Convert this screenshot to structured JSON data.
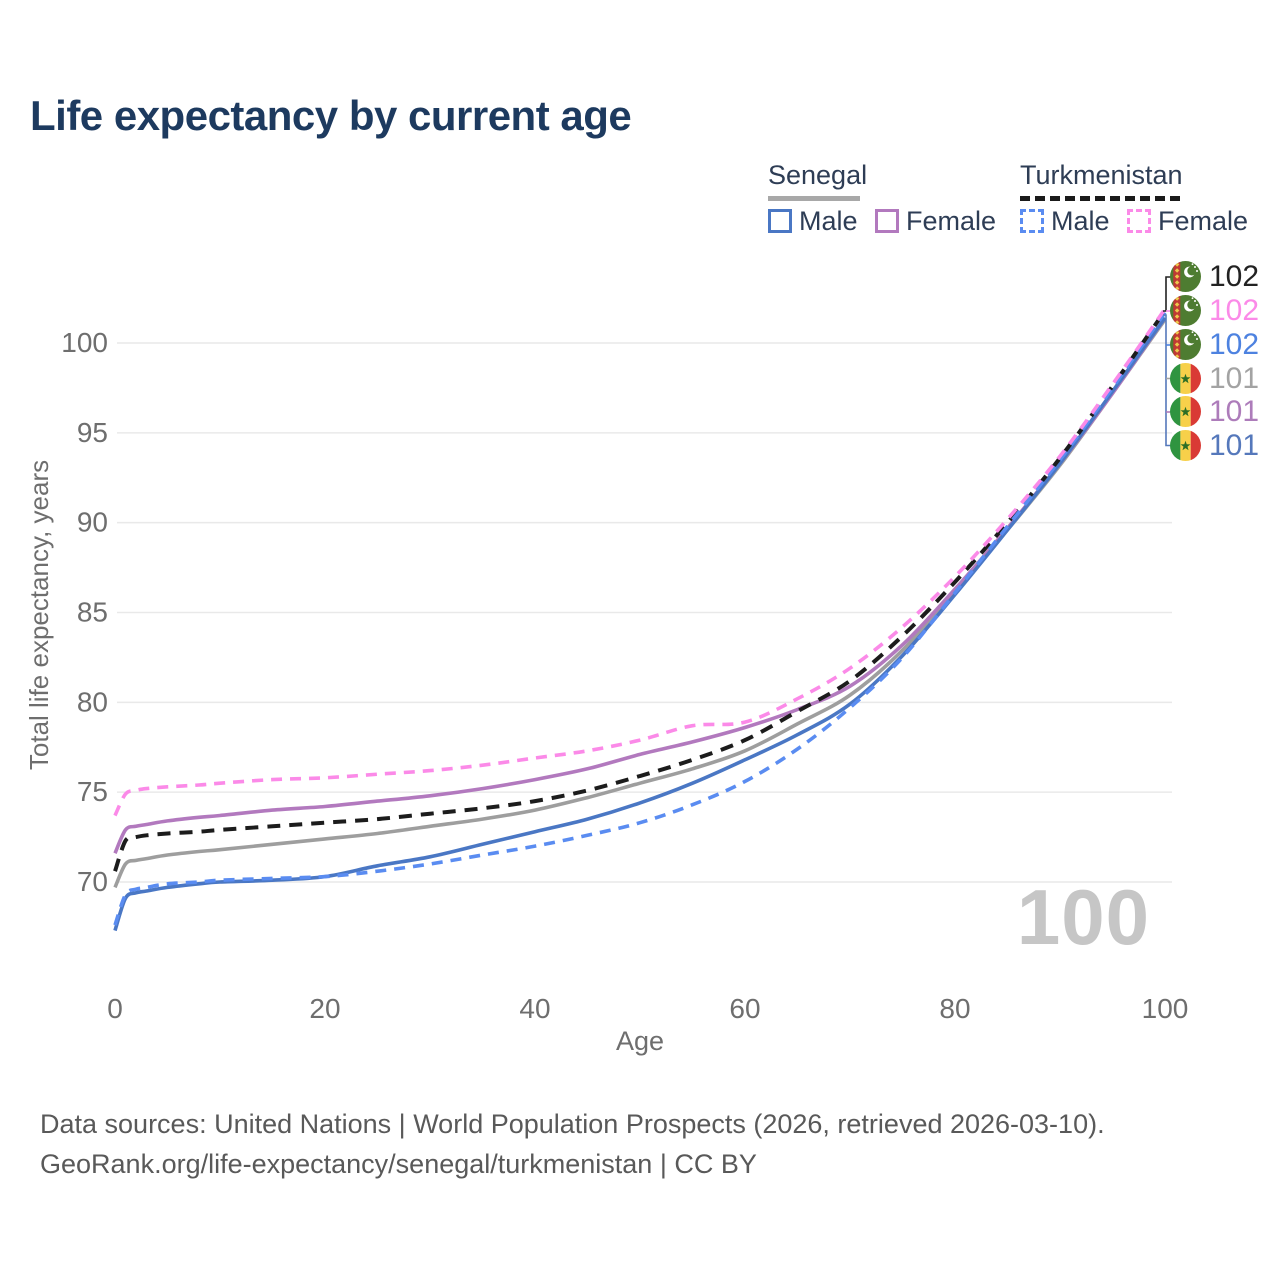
{
  "page": {
    "title": "Life expectancy by current age"
  },
  "legend": {
    "groups": [
      {
        "label": "Senegal",
        "line_color": "#a8a8a8",
        "line_style": "solid",
        "items": [
          {
            "label": "Male",
            "color": "#4a77c4",
            "style": "solid"
          },
          {
            "label": "Female",
            "color": "#b279be",
            "style": "solid"
          }
        ]
      },
      {
        "label": "Turkmenistan",
        "line_color": "#1a1a1a",
        "line_style": "dashed",
        "items": [
          {
            "label": "Male",
            "color": "#5a8cf1",
            "style": "dashed"
          },
          {
            "label": "Female",
            "color": "#fb8ae8",
            "style": "dashed"
          }
        ]
      }
    ]
  },
  "chart_data": {
    "type": "line",
    "title": "Life expectancy by current age",
    "xlabel": "Age",
    "ylabel": "Total life expectancy, years",
    "xlim": [
      0,
      100
    ],
    "ylim": [
      66.5,
      103.5
    ],
    "xticks": [
      0,
      20,
      40,
      60,
      80,
      100
    ],
    "yticks": [
      70,
      75,
      80,
      85,
      90,
      95,
      100
    ],
    "grid": "horizontal",
    "legend_position": "top-right",
    "x": [
      0,
      1,
      2,
      3,
      5,
      8,
      10,
      15,
      20,
      25,
      30,
      35,
      40,
      45,
      50,
      55,
      60,
      65,
      70,
      75,
      80,
      85,
      90,
      95,
      100
    ],
    "series": [
      {
        "name": "Senegal Total",
        "country": "senegal",
        "sex": "total",
        "color": "#9e9e9e",
        "dash": "solid",
        "values": [
          69.7,
          71.0,
          71.2,
          71.3,
          71.5,
          71.7,
          71.8,
          72.1,
          72.4,
          72.7,
          73.1,
          73.5,
          74.0,
          74.7,
          75.5,
          76.3,
          77.3,
          78.8,
          80.4,
          82.9,
          86.2,
          89.6,
          93.2,
          97.2,
          101.3
        ]
      },
      {
        "name": "Senegal Female",
        "country": "senegal",
        "sex": "female",
        "color": "#b279be",
        "dash": "solid",
        "values": [
          71.6,
          72.9,
          73.1,
          73.2,
          73.4,
          73.6,
          73.7,
          74.0,
          74.2,
          74.5,
          74.8,
          75.2,
          75.7,
          76.3,
          77.1,
          77.8,
          78.6,
          79.6,
          80.9,
          83.2,
          86.3,
          89.7,
          93.3,
          97.2,
          101.4
        ]
      },
      {
        "name": "Senegal Male",
        "country": "senegal",
        "sex": "male",
        "color": "#4a77c4",
        "dash": "solid",
        "values": [
          67.3,
          69.1,
          69.4,
          69.5,
          69.7,
          69.9,
          70.0,
          70.1,
          70.3,
          70.9,
          71.4,
          72.1,
          72.8,
          73.5,
          74.4,
          75.5,
          76.8,
          78.2,
          79.9,
          82.6,
          86.0,
          89.6,
          93.3,
          97.3,
          101.4
        ]
      },
      {
        "name": "Turkmenistan Total",
        "country": "turkmenistan",
        "sex": "total",
        "color": "#1c1c1c",
        "dash": "dashed",
        "values": [
          70.6,
          72.3,
          72.5,
          72.6,
          72.7,
          72.8,
          72.9,
          73.1,
          73.3,
          73.5,
          73.8,
          74.1,
          74.5,
          75.1,
          75.9,
          76.8,
          77.9,
          79.5,
          81.2,
          83.7,
          86.7,
          90.0,
          93.6,
          97.6,
          101.8
        ]
      },
      {
        "name": "Turkmenistan Male",
        "country": "turkmenistan",
        "sex": "male",
        "color": "#5a8cf1",
        "dash": "dashed",
        "values": [
          67.6,
          69.3,
          69.6,
          69.7,
          69.9,
          70.0,
          70.1,
          70.2,
          70.3,
          70.6,
          71.0,
          71.5,
          72.0,
          72.6,
          73.3,
          74.3,
          75.6,
          77.4,
          79.7,
          82.5,
          86.1,
          89.8,
          93.5,
          97.5,
          101.7
        ]
      },
      {
        "name": "Turkmenistan Female",
        "country": "turkmenistan",
        "sex": "female",
        "color": "#fb8ae8",
        "dash": "dashed",
        "values": [
          73.7,
          74.9,
          75.1,
          75.2,
          75.3,
          75.4,
          75.5,
          75.7,
          75.8,
          76.0,
          76.2,
          76.5,
          76.9,
          77.3,
          77.9,
          78.7,
          78.9,
          80.2,
          81.9,
          84.2,
          87.0,
          90.2,
          93.7,
          97.7,
          101.9
        ]
      }
    ]
  },
  "end_labels": [
    {
      "flag": "turkmenistan",
      "value": "102",
      "color": "#222222"
    },
    {
      "flag": "turkmenistan",
      "value": "102",
      "color": "#fb8ae8"
    },
    {
      "flag": "turkmenistan",
      "value": "102",
      "color": "#4d82e0"
    },
    {
      "flag": "senegal",
      "value": "101",
      "color": "#a3a3a3"
    },
    {
      "flag": "senegal",
      "value": "101",
      "color": "#ad7cba"
    },
    {
      "flag": "senegal",
      "value": "101",
      "color": "#5578bb"
    }
  ],
  "watermark": "100",
  "footer": {
    "line1": "Data sources: United Nations | World Population Prospects (2026, retrieved 2026-03-10).",
    "line2": "GeoRank.org/life-expectancy/senegal/turkmenistan | CC BY"
  }
}
